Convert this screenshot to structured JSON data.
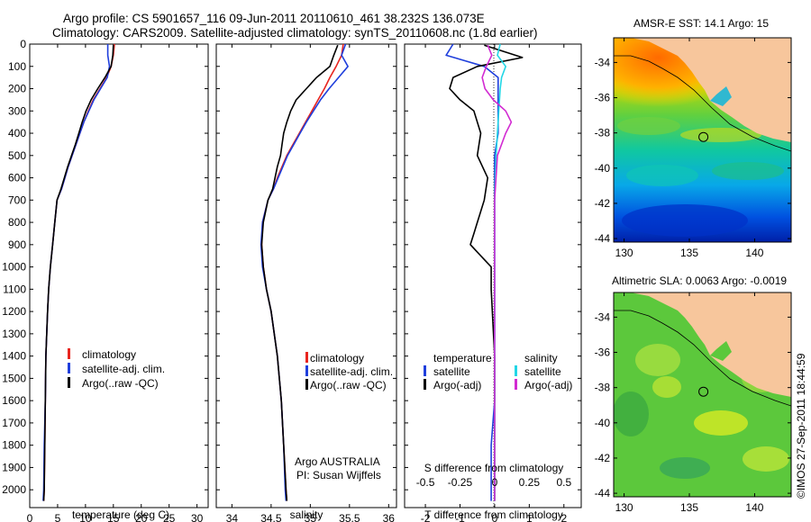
{
  "header": {
    "line1": "Argo profile: CS 5901657_116 09-Jun-2011 20110610_461 38.232S 136.073E",
    "line2": "Climatology: CARS2009. Satellite-adjusted climatology: synTS_20110608.nc (1.8d earlier)"
  },
  "colors": {
    "climatology": "#e8251f",
    "satellite_adj": "#1f3fdc",
    "argo": "#000000",
    "salinity_satellite": "#22d6e6",
    "salinity_argo": "#d22bd2",
    "land": "#f7c69c"
  },
  "footer": {
    "stamp": "©IMOS 27-Sep-2011 18:44:59"
  },
  "chart_data": [
    {
      "id": "temperature",
      "type": "line",
      "xlabel": "temperature (deg C)",
      "ylabel": "",
      "xlim": [
        0,
        32
      ],
      "ylim": [
        2080,
        0
      ],
      "xticks": [
        0,
        5,
        10,
        15,
        20,
        25,
        30
      ],
      "xticklabels": [
        "0",
        "5",
        "10",
        "15",
        "20",
        "25",
        "30"
      ],
      "yticks": [
        0,
        100,
        200,
        300,
        400,
        500,
        600,
        700,
        800,
        900,
        1000,
        1100,
        1200,
        1300,
        1400,
        1500,
        1600,
        1700,
        1800,
        1900,
        2000
      ],
      "yticklabels": [
        "0",
        "100",
        "200",
        "300",
        "400",
        "500",
        "600",
        "700",
        "800",
        "900",
        "1000",
        "1100",
        "1200",
        "1300",
        "1400",
        "1500",
        "1600",
        "1700",
        "1800",
        "1900",
        "2000"
      ],
      "legend": [
        "climatology",
        "satellite-adj. clim.",
        "Argo(..raw -QC)"
      ],
      "legend_placement": "bottom-center",
      "series": [
        {
          "name": "climatology",
          "color": "#e8251f",
          "x": [
            15.2,
            15.0,
            14.6,
            13.8,
            12.6,
            11.4,
            10.5,
            9.7,
            9.0,
            8.3,
            7.6,
            6.9,
            6.3,
            5.7,
            4.9,
            4.5,
            4.1,
            3.7,
            3.4,
            3.2,
            2.9,
            2.8,
            2.7,
            2.6,
            2.5
          ],
          "y": [
            0,
            50,
            100,
            150,
            200,
            250,
            300,
            350,
            400,
            450,
            500,
            550,
            600,
            650,
            700,
            800,
            900,
            1000,
            1100,
            1200,
            1400,
            1600,
            1800,
            2000,
            2050
          ]
        },
        {
          "name": "satellite-adj. clim.",
          "color": "#1f3fdc",
          "x": [
            14.0,
            14.0,
            14.3,
            13.9,
            12.7,
            11.5,
            10.6,
            9.7,
            9.0,
            8.3,
            7.6,
            6.9,
            6.3,
            5.7,
            4.9,
            4.5,
            4.1,
            3.7,
            3.4,
            3.2,
            2.9,
            2.8,
            2.6,
            2.5,
            2.4
          ],
          "y": [
            0,
            50,
            100,
            150,
            200,
            250,
            300,
            350,
            400,
            450,
            500,
            550,
            600,
            650,
            700,
            800,
            900,
            1000,
            1100,
            1200,
            1400,
            1600,
            1800,
            2000,
            2050
          ]
        },
        {
          "name": "Argo(..raw -QC)",
          "color": "#000000",
          "x": [
            15.0,
            14.9,
            14.6,
            13.5,
            12.2,
            11.0,
            10.1,
            9.4,
            8.8,
            8.2,
            7.5,
            6.8,
            6.2,
            5.6,
            4.9,
            4.5,
            4.1,
            3.7,
            3.4,
            3.2,
            2.9,
            2.8,
            2.7,
            2.6,
            2.5
          ],
          "y": [
            5,
            50,
            100,
            150,
            200,
            250,
            300,
            350,
            400,
            450,
            500,
            550,
            600,
            650,
            700,
            800,
            900,
            1000,
            1100,
            1200,
            1400,
            1600,
            1800,
            2000,
            2050
          ]
        }
      ]
    },
    {
      "id": "salinity",
      "type": "line",
      "xlabel": "salinity",
      "ylabel": "",
      "xlim": [
        33.8,
        36.1
      ],
      "ylim": [
        2080,
        0
      ],
      "xticks": [
        34,
        34.5,
        35,
        35.5,
        36
      ],
      "xticklabels": [
        "34",
        "34.5",
        "35",
        "35.5",
        "36"
      ],
      "legend": [
        "climatology",
        "satellite-adj. clim.",
        "Argo(..raw -QC)"
      ],
      "legend_placement": "bottom-center",
      "annotations": [
        "Argo AUSTRALIA",
        "PI: Susan Wijffels"
      ],
      "series": [
        {
          "name": "climatology",
          "color": "#e8251f",
          "x": [
            35.42,
            35.4,
            35.33,
            35.25,
            35.18,
            35.1,
            35.02,
            34.94,
            34.86,
            34.78,
            34.7,
            34.64,
            34.58,
            34.53,
            34.46,
            34.39,
            34.38,
            34.4,
            34.44,
            34.5,
            34.58,
            34.63,
            34.66,
            34.69,
            34.7
          ],
          "y": [
            0,
            50,
            100,
            150,
            200,
            250,
            300,
            350,
            400,
            450,
            500,
            550,
            600,
            650,
            700,
            800,
            900,
            1000,
            1100,
            1200,
            1400,
            1600,
            1800,
            2000,
            2050
          ]
        },
        {
          "name": "satellite-adj. clim.",
          "color": "#1f3fdc",
          "x": [
            35.45,
            35.4,
            35.48,
            35.36,
            35.24,
            35.13,
            35.04,
            34.95,
            34.87,
            34.79,
            34.71,
            34.65,
            34.59,
            34.53,
            34.46,
            34.39,
            34.37,
            34.39,
            34.44,
            34.5,
            34.58,
            34.63,
            34.66,
            34.68,
            34.69
          ],
          "y": [
            0,
            50,
            100,
            150,
            200,
            250,
            300,
            350,
            400,
            450,
            500,
            550,
            600,
            650,
            700,
            800,
            900,
            1000,
            1100,
            1200,
            1400,
            1600,
            1800,
            2000,
            2050
          ]
        },
        {
          "name": "Argo(..raw -QC)",
          "color": "#000000",
          "x": [
            35.35,
            35.3,
            35.25,
            35.08,
            34.95,
            34.82,
            34.75,
            34.7,
            34.66,
            34.64,
            34.62,
            34.58,
            34.55,
            34.52,
            34.46,
            34.4,
            34.38,
            34.4,
            34.44,
            34.5,
            34.58,
            34.63,
            34.66,
            34.69,
            34.7
          ],
          "y": [
            5,
            50,
            100,
            150,
            200,
            250,
            300,
            350,
            400,
            450,
            500,
            550,
            600,
            650,
            700,
            800,
            900,
            1000,
            1100,
            1200,
            1400,
            1600,
            1800,
            2000,
            2050
          ]
        }
      ]
    },
    {
      "id": "difference",
      "type": "line",
      "xlabel": "T difference from climatology",
      "xlabel_top": "S difference from climatology",
      "xlim": [
        -2.6,
        2.5
      ],
      "ylim": [
        2080,
        0
      ],
      "xticks": [
        -2,
        -1,
        0,
        1,
        2
      ],
      "xticklabels": [
        "-2",
        "-1",
        "0",
        "1",
        "2"
      ],
      "s_xticks": [
        -0.5,
        -0.25,
        0,
        0.25,
        0.5
      ],
      "s_xticklabels": [
        "-0.5",
        "-0.25",
        "0",
        "0.25",
        "0.5"
      ],
      "legend_headers": [
        "temperature",
        "salinity"
      ],
      "legend": [
        "satellite",
        "Argo(-adj)",
        "satellite",
        "Argo(-adj)"
      ],
      "legend_placement": "bottom-center",
      "series": [
        {
          "name": "satellite",
          "group": "temperature",
          "color": "#1f3fdc",
          "x": [
            -1.2,
            -1.4,
            -0.3,
            0.1,
            0.1,
            0.1,
            0.1,
            0.0,
            0.0,
            0.0,
            0.0,
            0.0,
            0.0,
            0.0,
            -0.1,
            -0.1,
            -0.1
          ],
          "y": [
            0,
            50,
            100,
            150,
            200,
            300,
            400,
            500,
            600,
            800,
            1000,
            1200,
            1400,
            1600,
            1800,
            2000,
            2050
          ]
        },
        {
          "name": "Argo(-adj)",
          "group": "temperature",
          "color": "#000000",
          "x": [
            -0.3,
            0.8,
            -0.5,
            -1.2,
            -1.3,
            -1.0,
            -0.6,
            -0.5,
            -0.4,
            -0.5,
            -0.2,
            -0.3,
            -0.5,
            -0.6,
            -0.7,
            -0.4,
            -0.1,
            -0.1,
            0.0,
            0.0,
            0.0,
            0.0
          ],
          "y": [
            5,
            60,
            100,
            150,
            200,
            250,
            300,
            350,
            400,
            500,
            600,
            700,
            800,
            850,
            900,
            950,
            1000,
            1100,
            1400,
            1700,
            2000,
            2050
          ]
        },
        {
          "name": "satellite",
          "group": "salinity",
          "color": "#22d6e6",
          "x": [
            0.04,
            0.02,
            0.08,
            0.05,
            0.04,
            0.03,
            0.02,
            0.01,
            0.0,
            0.0,
            0.0,
            0.0,
            0.0,
            0.0
          ],
          "y": [
            0,
            50,
            100,
            150,
            200,
            300,
            400,
            500,
            700,
            900,
            1200,
            1500,
            1800,
            2050
          ]
        },
        {
          "name": "Argo(-adj)",
          "group": "salinity",
          "color": "#d22bd2",
          "x": [
            -0.05,
            -0.02,
            -0.06,
            -0.09,
            -0.07,
            -0.01,
            0.08,
            0.12,
            0.08,
            0.02,
            0.0,
            0.0,
            0.0,
            0.0,
            0.0
          ],
          "y": [
            5,
            50,
            100,
            150,
            200,
            250,
            300,
            350,
            400,
            500,
            700,
            900,
            1200,
            1600,
            2050
          ]
        }
      ]
    },
    {
      "id": "sst_map",
      "type": "heatmap",
      "title": "AMSR-E SST: 14.1 Argo: 15",
      "xlim": [
        129.2,
        142.8
      ],
      "ylim": [
        -44.2,
        -32.6
      ],
      "xticks": [
        130,
        135,
        140
      ],
      "xticklabels": [
        "130",
        "135",
        "140"
      ],
      "yticks": [
        -34,
        -36,
        -38,
        -40,
        -42,
        -44
      ],
      "yticklabels": [
        "-34",
        "-36",
        "-38",
        "-40",
        "-42",
        "-44"
      ],
      "marker": {
        "lon": 136.073,
        "lat": -38.232
      }
    },
    {
      "id": "sla_map",
      "type": "heatmap",
      "title": "Altimetric SLA: 0.0063 Argo: -0.0019",
      "xlim": [
        129.2,
        142.8
      ],
      "ylim": [
        -44.2,
        -32.6
      ],
      "xticks": [
        130,
        135,
        140
      ],
      "xticklabels": [
        "130",
        "135",
        "140"
      ],
      "yticks": [
        -34,
        -36,
        -38,
        -40,
        -42,
        -44
      ],
      "yticklabels": [
        "-34",
        "-36",
        "-38",
        "-40",
        "-42",
        "-44"
      ],
      "marker": {
        "lon": 136.073,
        "lat": -38.232
      }
    }
  ]
}
